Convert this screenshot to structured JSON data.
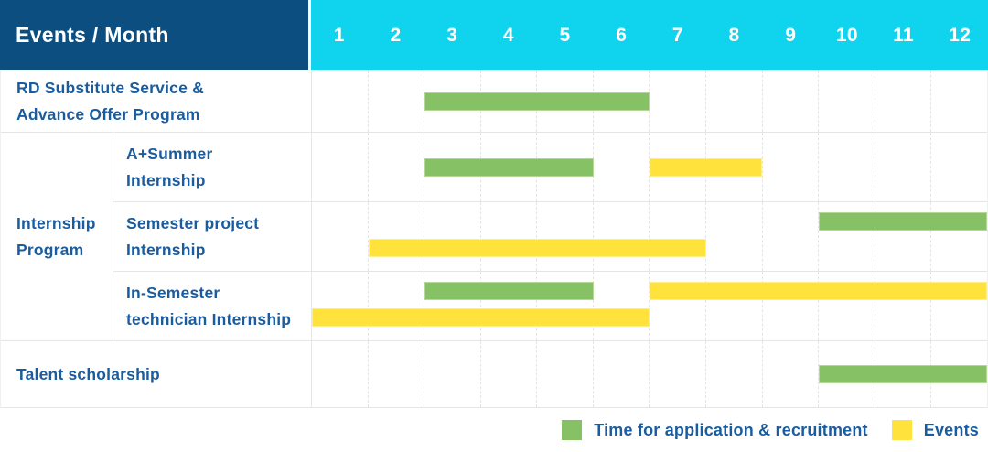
{
  "header": {
    "title": "Events / Month"
  },
  "colors": {
    "header_bg": "#0d4e80",
    "months_bg": "#10d4ee",
    "application_green": "#86c166",
    "event_yellow": "#ffe33c",
    "label_text": "#1b5c9e",
    "header_text": "#ffffff"
  },
  "legend": {
    "items": [
      {
        "kind": "application",
        "label": "Time for application & recruitment"
      },
      {
        "kind": "event",
        "label": "Events"
      }
    ]
  },
  "chart_data": {
    "type": "bar",
    "subtype": "gantt-timeline",
    "title": "Events / Month",
    "x_axis": {
      "unit": "month",
      "ticks": [
        "1",
        "2",
        "3",
        "4",
        "5",
        "6",
        "7",
        "8",
        "9",
        "10",
        "11",
        "12"
      ],
      "range": [
        1,
        12
      ]
    },
    "legend": [
      {
        "label": "Time for application & recruitment",
        "color": "#86c166",
        "kind": "application"
      },
      {
        "label": "Events",
        "color": "#ffe33c",
        "kind": "event"
      }
    ],
    "group_label": {
      "text": "Internship Program",
      "lines": [
        "Internship",
        "Program"
      ]
    },
    "rows": [
      {
        "label": "RD Substitute Service & Advance Offer Program",
        "label_lines": [
          "RD Substitute Service &",
          "Advance Offer Program"
        ],
        "group": null,
        "segments": [
          {
            "kind": "application",
            "from_month": 3,
            "to_month": 6,
            "lane": "middle"
          }
        ]
      },
      {
        "label": "A+Summer Internship",
        "label_lines": [
          "A+Summer",
          "Internship"
        ],
        "group": "Internship Program",
        "segments": [
          {
            "kind": "application",
            "from_month": 3,
            "to_month": 5,
            "lane": "middle"
          },
          {
            "kind": "event",
            "from_month": 7,
            "to_month": 8,
            "lane": "middle"
          }
        ]
      },
      {
        "label": "Semester project Internship",
        "label_lines": [
          "Semester project",
          "Internship"
        ],
        "group": "Internship Program",
        "segments": [
          {
            "kind": "application",
            "from_month": 10,
            "to_month": 12,
            "lane": "upper"
          },
          {
            "kind": "event",
            "from_month": 2,
            "to_month": 7,
            "lane": "lower"
          }
        ]
      },
      {
        "label": "In-Semester technician Internship",
        "label_lines": [
          "In-Semester",
          "technician Internship"
        ],
        "group": "Internship Program",
        "segments": [
          {
            "kind": "application",
            "from_month": 3,
            "to_month": 5,
            "lane": "upper"
          },
          {
            "kind": "event",
            "from_month": 7,
            "to_month": 12,
            "lane": "upper"
          },
          {
            "kind": "event",
            "from_month": 1,
            "to_month": 6,
            "lane": "lower"
          }
        ]
      },
      {
        "label": "Talent scholarship",
        "label_lines": [
          "Talent scholarship"
        ],
        "group": null,
        "segments": [
          {
            "kind": "application",
            "from_month": 10,
            "to_month": 12,
            "lane": "middle"
          }
        ]
      }
    ]
  }
}
